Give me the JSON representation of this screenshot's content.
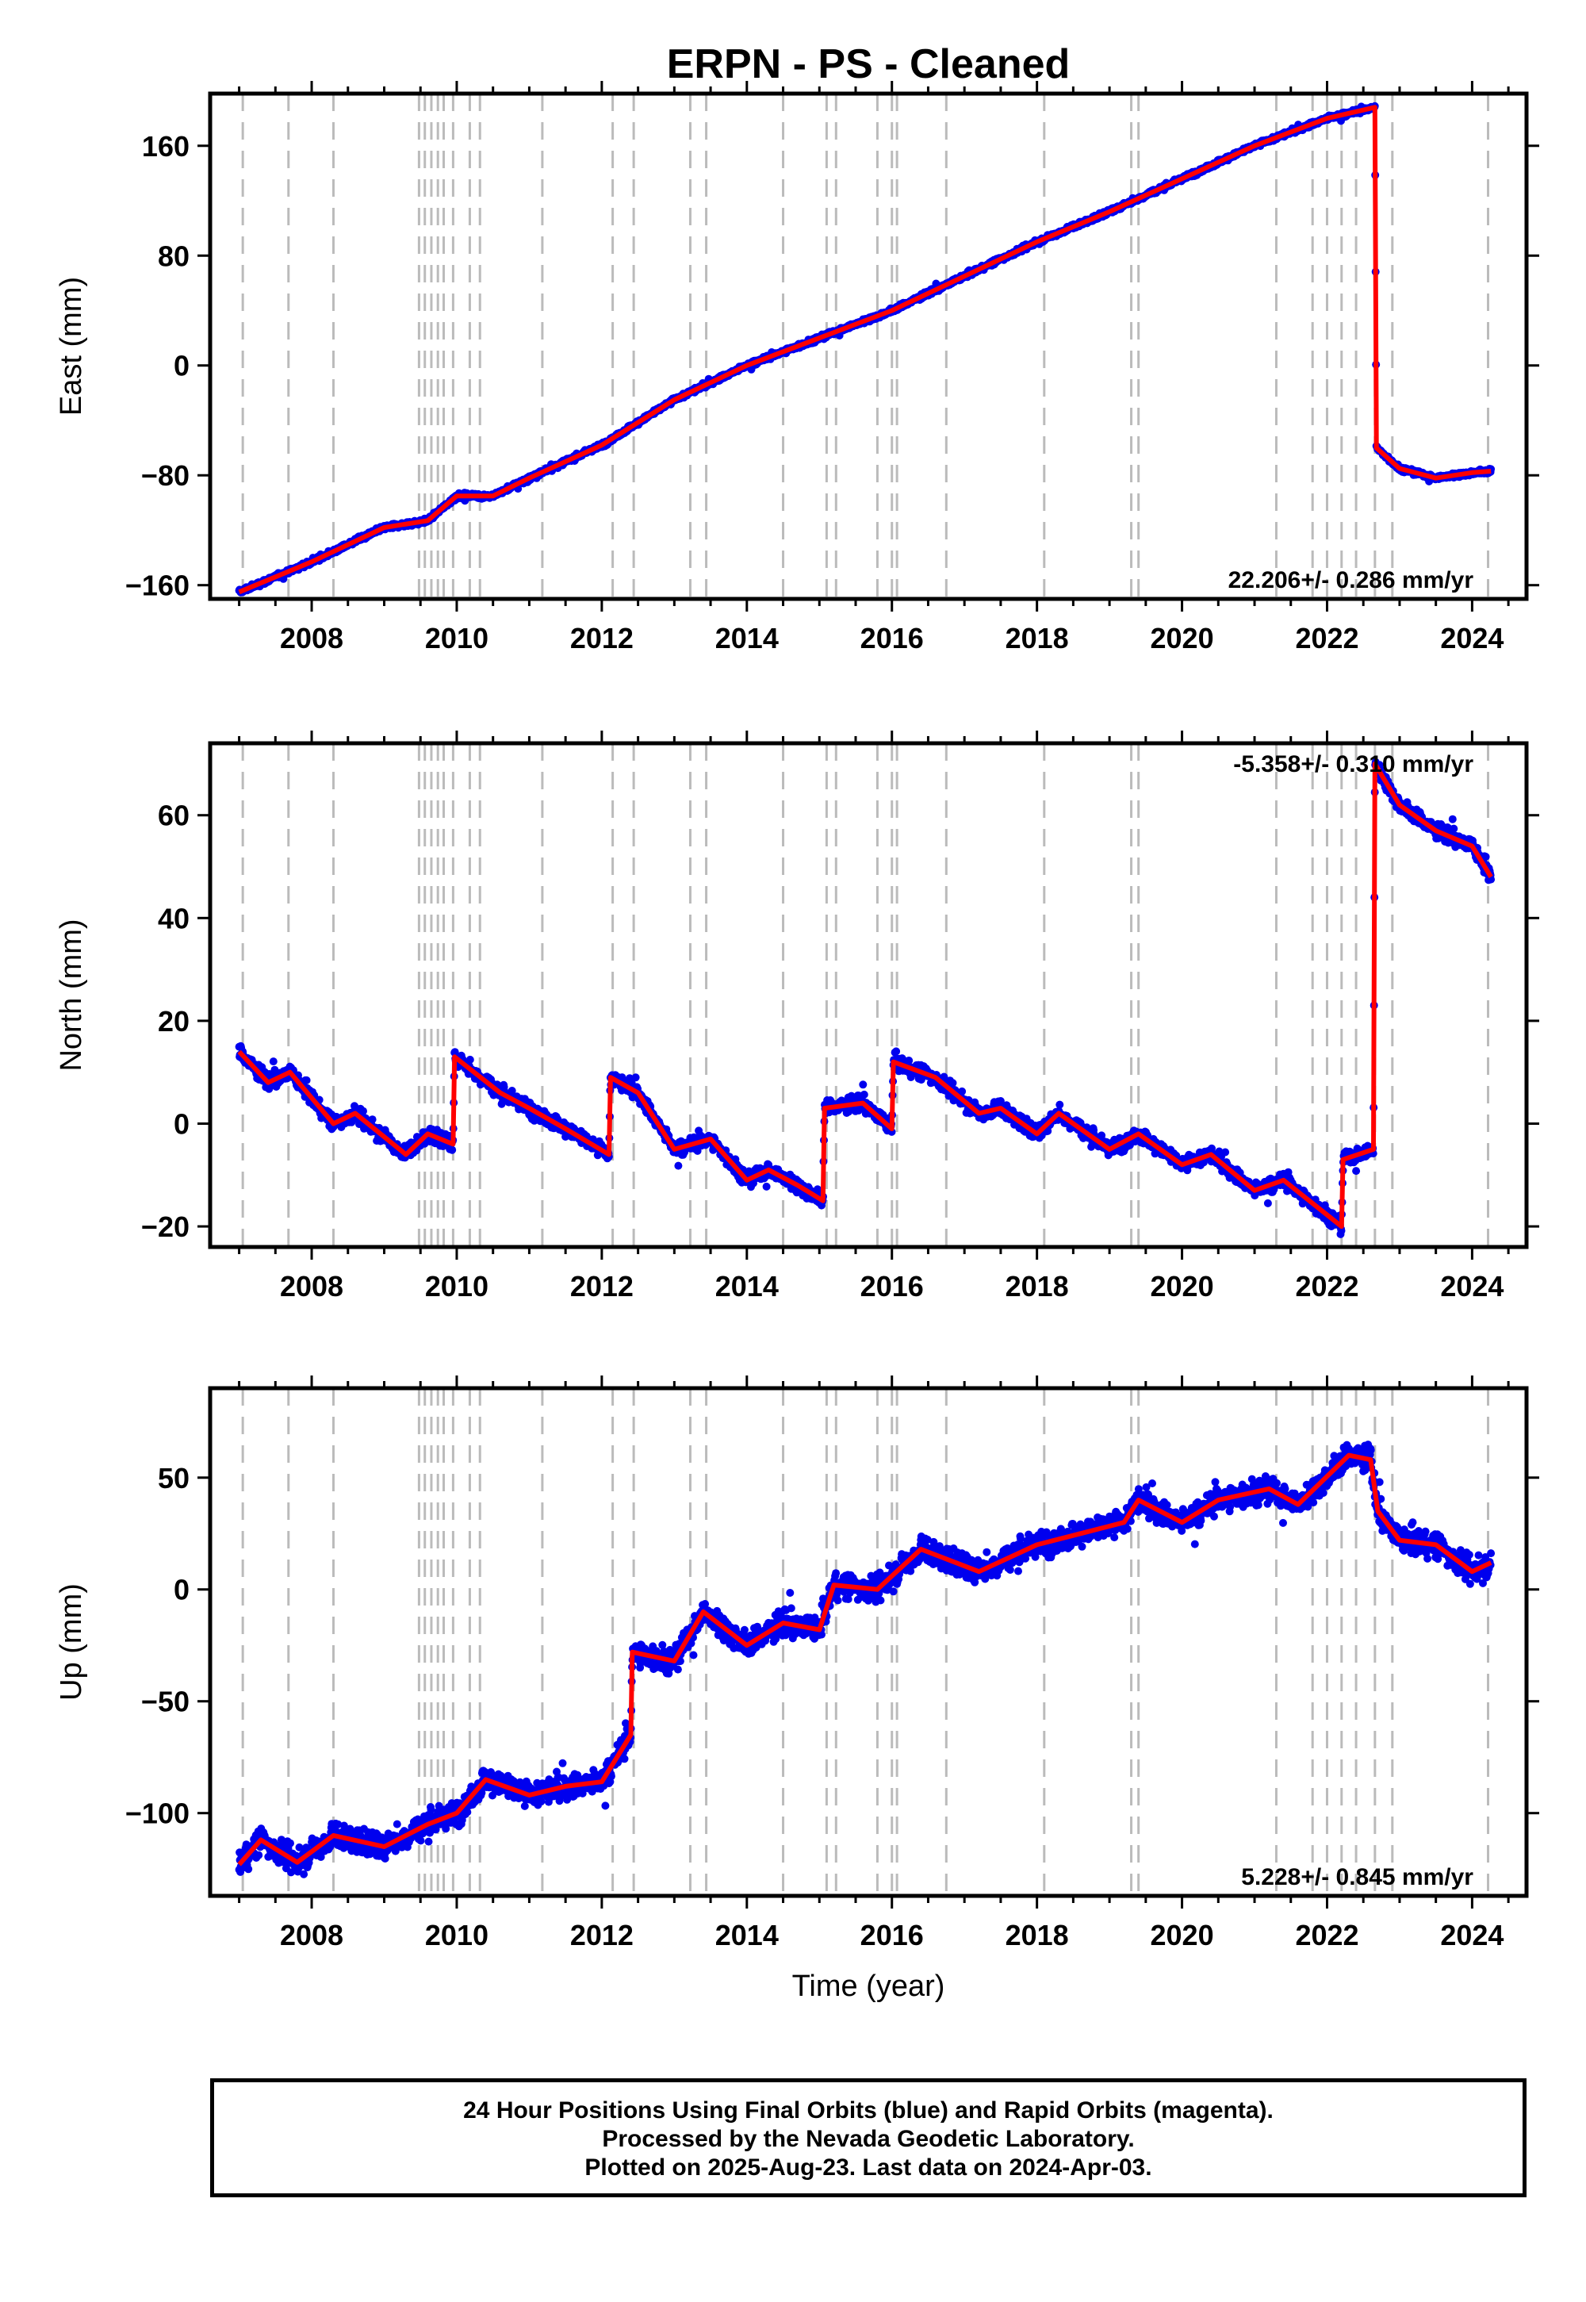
{
  "chart_data": [
    {
      "type": "scatter",
      "panel": "east",
      "title": "ERPN  - PS - Cleaned",
      "ylabel": "East (mm)",
      "xlabel": "",
      "xlim": [
        2006.6,
        2024.75
      ],
      "ylim": [
        -170,
        198
      ],
      "xticks": [
        2008,
        2010,
        2012,
        2014,
        2016,
        2018,
        2020,
        2022,
        2024
      ],
      "xtick_labels": [
        "2008",
        "2010",
        "2012",
        "2014",
        "2016",
        "2018",
        "2020",
        "2022",
        "2024"
      ],
      "yticks": [
        -160,
        -80,
        0,
        80,
        160
      ],
      "ytick_labels": [
        "−160",
        "−80",
        "0",
        "80",
        "160"
      ],
      "rate_label": "22.206+/- 0.286 mm/yr",
      "grid": false,
      "series": [
        {
          "color": "#0000ee",
          "style": "dots",
          "noise": 2.2,
          "x": [
            2007.0,
            2008.0,
            2009.0,
            2009.6,
            2010.0,
            2010.5,
            2011.0,
            2012.0,
            2013.0,
            2014.0,
            2015.0,
            2016.0,
            2017.0,
            2018.0,
            2019.0,
            2020.0,
            2021.0,
            2022.0,
            2022.66,
            2022.68,
            2023.0,
            2023.5,
            2024.0,
            2024.26
          ],
          "y": [
            -165,
            -143,
            -118,
            -113,
            -95,
            -95,
            -82,
            -58,
            -25,
            0,
            20,
            40,
            65,
            90,
            112,
            136,
            160,
            180,
            188,
            -60,
            -75,
            -82,
            -78,
            -77
          ]
        },
        {
          "color": "#ff0000",
          "style": "line",
          "x": [
            2007.0,
            2008.0,
            2009.0,
            2009.6,
            2010.0,
            2010.5,
            2011.0,
            2012.0,
            2013.0,
            2014.0,
            2015.0,
            2016.0,
            2017.0,
            2018.0,
            2019.0,
            2020.0,
            2021.0,
            2022.0,
            2022.66,
            2022.68,
            2023.0,
            2023.5,
            2024.0,
            2024.26
          ],
          "y": [
            -165,
            -143,
            -118,
            -113,
            -95,
            -95,
            -82,
            -58,
            -25,
            0,
            20,
            40,
            65,
            90,
            112,
            136,
            160,
            180,
            188,
            -60,
            -75,
            -82,
            -78,
            -77
          ]
        }
      ]
    },
    {
      "type": "scatter",
      "panel": "north",
      "title": "",
      "ylabel": "North (mm)",
      "xlabel": "",
      "xlim": [
        2006.6,
        2024.75
      ],
      "ylim": [
        -24,
        74
      ],
      "xticks": [
        2008,
        2010,
        2012,
        2014,
        2016,
        2018,
        2020,
        2022,
        2024
      ],
      "xtick_labels": [
        "2008",
        "2010",
        "2012",
        "2014",
        "2016",
        "2018",
        "2020",
        "2022",
        "2024"
      ],
      "yticks": [
        -20,
        0,
        20,
        40,
        60
      ],
      "ytick_labels": [
        "−20",
        "0",
        "20",
        "40",
        "60"
      ],
      "rate_label": "-5.358+/- 0.310 mm/yr",
      "grid": false,
      "series": [
        {
          "color": "#0000ee",
          "style": "dots",
          "noise": 1.8,
          "x": [
            2007.0,
            2007.4,
            2007.7,
            2008.3,
            2008.6,
            2009.3,
            2009.6,
            2009.95,
            2009.97,
            2010.6,
            2011.0,
            2011.5,
            2012.1,
            2012.12,
            2012.5,
            2013.0,
            2013.5,
            2014.0,
            2014.3,
            2014.7,
            2015.05,
            2015.07,
            2015.6,
            2016.0,
            2016.02,
            2016.6,
            2017.2,
            2017.5,
            2018.0,
            2018.3,
            2019.0,
            2019.4,
            2020.0,
            2020.4,
            2021.0,
            2021.4,
            2022.2,
            2022.22,
            2022.64,
            2022.66,
            2023.0,
            2023.5,
            2024.0,
            2024.26
          ],
          "y": [
            14,
            8,
            10,
            0,
            2,
            -6,
            -2,
            -4,
            13,
            6,
            3,
            -1,
            -6,
            9,
            6,
            -5,
            -3,
            -11,
            -9,
            -12,
            -15,
            3,
            4,
            -1,
            12,
            9,
            2,
            3,
            -2,
            2,
            -5,
            -2,
            -8,
            -6,
            -13,
            -11,
            -20,
            -7,
            -5,
            70,
            62,
            57,
            54,
            48
          ]
        },
        {
          "color": "#ff0000",
          "style": "line",
          "x": [
            2007.0,
            2007.4,
            2007.7,
            2008.3,
            2008.6,
            2009.3,
            2009.6,
            2009.95,
            2009.97,
            2010.6,
            2011.0,
            2011.5,
            2012.1,
            2012.12,
            2012.5,
            2013.0,
            2013.5,
            2014.0,
            2014.3,
            2014.7,
            2015.05,
            2015.07,
            2015.6,
            2016.0,
            2016.02,
            2016.6,
            2017.2,
            2017.5,
            2018.0,
            2018.3,
            2019.0,
            2019.4,
            2020.0,
            2020.4,
            2021.0,
            2021.4,
            2022.2,
            2022.22,
            2022.64,
            2022.66,
            2023.0,
            2023.5,
            2024.0,
            2024.26
          ],
          "y": [
            14,
            8,
            10,
            0,
            2,
            -6,
            -2,
            -4,
            13,
            6,
            3,
            -1,
            -6,
            9,
            6,
            -5,
            -3,
            -11,
            -9,
            -12,
            -15,
            3,
            4,
            -1,
            12,
            9,
            2,
            3,
            -2,
            2,
            -5,
            -2,
            -8,
            -6,
            -13,
            -11,
            -20,
            -7,
            -5,
            70,
            62,
            57,
            54,
            48
          ]
        }
      ]
    },
    {
      "type": "scatter",
      "panel": "up",
      "title": "",
      "ylabel": "Up (mm)",
      "xlabel": "Time (year)",
      "xlim": [
        2006.6,
        2024.75
      ],
      "ylim": [
        -137,
        90
      ],
      "xticks": [
        2008,
        2010,
        2012,
        2014,
        2016,
        2018,
        2020,
        2022,
        2024
      ],
      "xtick_labels": [
        "2008",
        "2010",
        "2012",
        "2014",
        "2016",
        "2018",
        "2020",
        "2022",
        "2024"
      ],
      "yticks": [
        -100,
        -50,
        0,
        50
      ],
      "ytick_labels": [
        "−100",
        "−50",
        "0",
        "50"
      ],
      "rate_label": "5.228+/- 0.845 mm/yr",
      "grid": false,
      "series": [
        {
          "color": "#0000ee",
          "style": "dots",
          "noise": 7,
          "x": [
            2007.0,
            2007.3,
            2007.8,
            2008.3,
            2009.0,
            2009.6,
            2010.0,
            2010.4,
            2011.0,
            2011.5,
            2012.0,
            2012.4,
            2012.42,
            2013.0,
            2013.4,
            2014.0,
            2014.5,
            2015.0,
            2015.2,
            2015.8,
            2016.4,
            2017.2,
            2018.0,
            2018.6,
            2019.2,
            2019.4,
            2020.0,
            2020.5,
            2021.2,
            2021.6,
            2022.3,
            2022.6,
            2022.7,
            2023.0,
            2023.5,
            2024.0,
            2024.26
          ],
          "y": [
            -123,
            -112,
            -122,
            -110,
            -115,
            -105,
            -100,
            -85,
            -92,
            -88,
            -86,
            -65,
            -28,
            -32,
            -10,
            -25,
            -15,
            -18,
            2,
            0,
            18,
            8,
            20,
            25,
            30,
            40,
            30,
            40,
            45,
            38,
            60,
            58,
            35,
            22,
            20,
            8,
            12
          ]
        },
        {
          "color": "#ff0000",
          "style": "line",
          "x": [
            2007.0,
            2007.3,
            2007.8,
            2008.3,
            2009.0,
            2009.6,
            2010.0,
            2010.4,
            2011.0,
            2011.5,
            2012.0,
            2012.4,
            2012.42,
            2013.0,
            2013.4,
            2014.0,
            2014.5,
            2015.0,
            2015.2,
            2015.8,
            2016.4,
            2017.2,
            2018.0,
            2018.6,
            2019.2,
            2019.4,
            2020.0,
            2020.5,
            2021.2,
            2021.6,
            2022.3,
            2022.6,
            2022.7,
            2023.0,
            2023.5,
            2024.0,
            2024.26
          ],
          "y": [
            -123,
            -112,
            -122,
            -110,
            -115,
            -105,
            -100,
            -85,
            -92,
            -88,
            -86,
            -65,
            -28,
            -32,
            -10,
            -25,
            -15,
            -18,
            2,
            0,
            18,
            8,
            20,
            25,
            30,
            40,
            30,
            40,
            45,
            38,
            60,
            58,
            35,
            22,
            20,
            8,
            12
          ]
        }
      ]
    }
  ],
  "event_lines": {
    "color": "#bbbbbb",
    "x": [
      2007.05,
      2007.68,
      2008.3,
      2009.48,
      2009.56,
      2009.65,
      2009.74,
      2009.82,
      2009.95,
      2010.18,
      2010.32,
      2011.18,
      2012.15,
      2012.44,
      2013.22,
      2013.44,
      2014.5,
      2015.1,
      2015.23,
      2015.8,
      2016.0,
      2016.07,
      2016.75,
      2018.1,
      2019.3,
      2019.4,
      2021.3,
      2021.8,
      2022.0,
      2022.2,
      2022.4,
      2022.66,
      2022.9,
      2024.22
    ]
  },
  "footer": {
    "line1": "24 Hour Positions Using Final Orbits (blue) and Rapid Orbits (magenta).",
    "line2": "Processed by the Nevada Geodetic Laboratory.",
    "line3": "Plotted on 2025-Aug-23. Last data on 2024-Apr-03."
  }
}
